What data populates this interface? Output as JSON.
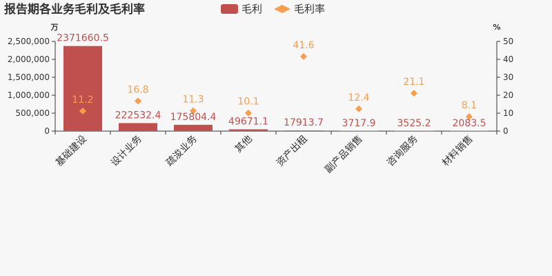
{
  "chart_data": {
    "type": "bar+scatter",
    "title": "报告期各业务毛利及毛利率",
    "legend": {
      "position": "top-center",
      "items": [
        {
          "name": "毛利",
          "shape": "bar",
          "color": "#c0504d"
        },
        {
          "name": "毛利率",
          "shape": "diamond",
          "color": "#f79d4f"
        }
      ]
    },
    "y_left": {
      "unit": "万",
      "min": 0,
      "max": 2500000,
      "ticks": [
        "0",
        "500,000",
        "1,000,000",
        "1,500,000",
        "2,000,000",
        "2,500,000"
      ]
    },
    "y_right": {
      "unit": "%",
      "min": 0,
      "max": 50,
      "ticks": [
        "0",
        "10",
        "20",
        "30",
        "40",
        "50"
      ]
    },
    "categories": [
      "基础建设",
      "设计业务",
      "疏浚业务",
      "其他",
      "资产出租",
      "副产品销售",
      "咨询服务",
      "材料销售"
    ],
    "series": [
      {
        "name": "毛利",
        "type": "bar",
        "axis": "left",
        "color": "#c0504d",
        "values": [
          2371660.5,
          222532.4,
          175804.4,
          49671.1,
          17913.7,
          3717.9,
          3525.2,
          2083.5
        ],
        "labels": [
          "2371660.5",
          "222532.4",
          "175804.4",
          "49671.1",
          "17913.7",
          "3717.9",
          "3525.2",
          "2083.5"
        ]
      },
      {
        "name": "毛利率",
        "type": "scatter",
        "axis": "right",
        "color": "#f79d4f",
        "values": [
          11.2,
          16.8,
          11.3,
          10.1,
          41.6,
          12.4,
          21.1,
          8.1
        ],
        "labels": [
          "11.2",
          "16.8",
          "11.3",
          "10.1",
          "41.6",
          "12.4",
          "21.1",
          "8.1"
        ]
      }
    ],
    "grid": false
  }
}
